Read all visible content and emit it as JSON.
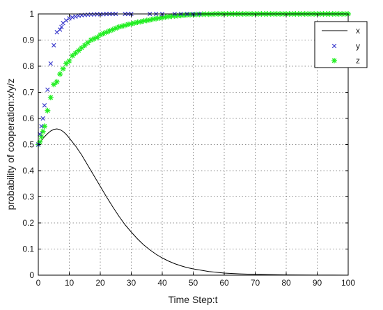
{
  "chart_data": {
    "type": "line",
    "xlabel": "Time Step:t",
    "ylabel": "probability of cooperation:x/y/z",
    "xlim": [
      0,
      100
    ],
    "ylim": [
      0,
      1
    ],
    "xticks": [
      0,
      10,
      20,
      30,
      40,
      50,
      60,
      70,
      80,
      90,
      100
    ],
    "yticks": [
      0,
      0.1,
      0.2,
      0.3,
      0.4,
      0.5,
      0.6,
      0.7,
      0.8,
      0.9,
      1
    ],
    "grid": true,
    "legend_position": "top-right",
    "series": [
      {
        "name": "x",
        "style": "line",
        "color": "#000000",
        "x": [
          0,
          1,
          2,
          3,
          4,
          5,
          6,
          7,
          8,
          9,
          10,
          12,
          14,
          16,
          18,
          20,
          22,
          24,
          26,
          28,
          30,
          32,
          34,
          36,
          38,
          40,
          42,
          44,
          46,
          48,
          50,
          55,
          60,
          65,
          70,
          75,
          80,
          85,
          90,
          95,
          100
        ],
        "y": [
          0.5,
          0.515,
          0.53,
          0.542,
          0.552,
          0.558,
          0.56,
          0.557,
          0.55,
          0.539,
          0.525,
          0.495,
          0.46,
          0.42,
          0.38,
          0.34,
          0.3,
          0.262,
          0.226,
          0.193,
          0.165,
          0.139,
          0.116,
          0.097,
          0.08,
          0.066,
          0.054,
          0.044,
          0.036,
          0.029,
          0.024,
          0.014,
          0.008,
          0.005,
          0.003,
          0.002,
          0.001,
          0.0007,
          0.0004,
          0.0002,
          0.0001
        ]
      },
      {
        "name": "y",
        "style": "marker-x",
        "color": "#3a3acc",
        "x": [
          0,
          0.5,
          1,
          1.5,
          2,
          3,
          4,
          5,
          6,
          7,
          7.5,
          8,
          9,
          10,
          11,
          12,
          13,
          14,
          15,
          16,
          17,
          18,
          19,
          20,
          21,
          22,
          23,
          24,
          25,
          28,
          29,
          30,
          36,
          38,
          40,
          44,
          46,
          48,
          50,
          52
        ],
        "y": [
          0.5,
          0.54,
          0.57,
          0.6,
          0.65,
          0.71,
          0.81,
          0.88,
          0.93,
          0.94,
          0.95,
          0.965,
          0.975,
          0.983,
          0.987,
          0.99,
          0.993,
          0.995,
          0.996,
          0.997,
          0.998,
          0.998,
          0.999,
          0.999,
          0.999,
          1.0,
          1.0,
          1.0,
          1.0,
          1.0,
          1.0,
          1.0,
          1.0,
          1.0,
          1.0,
          1.0,
          1.0,
          1.0,
          1.0,
          1.0
        ]
      },
      {
        "name": "z",
        "style": "marker-star",
        "color": "#22ee22",
        "x": [
          0,
          0.5,
          1,
          1.5,
          2,
          3,
          4,
          5,
          6,
          7,
          8,
          9,
          10,
          11,
          12,
          13,
          14,
          15,
          16,
          17,
          18,
          19,
          20,
          21,
          22,
          23,
          24,
          25,
          26,
          27,
          28,
          29,
          30,
          31,
          32,
          33,
          34,
          35,
          36,
          37,
          38,
          39,
          40,
          41,
          42,
          43,
          44,
          45,
          46,
          47,
          48,
          49,
          50,
          51,
          52,
          53,
          54,
          55,
          56,
          57,
          58,
          59,
          60,
          61,
          62,
          63,
          64,
          65,
          66,
          67,
          68,
          69,
          70,
          71,
          72,
          73,
          74,
          75,
          76,
          77,
          78,
          79,
          80,
          81,
          82,
          83,
          84,
          85,
          86,
          87,
          88,
          89,
          90,
          91,
          92,
          93,
          94,
          95,
          96,
          97,
          98,
          99,
          100
        ],
        "y": [
          0.5,
          0.51,
          0.53,
          0.55,
          0.57,
          0.63,
          0.68,
          0.73,
          0.74,
          0.77,
          0.79,
          0.81,
          0.82,
          0.84,
          0.85,
          0.86,
          0.87,
          0.88,
          0.89,
          0.9,
          0.905,
          0.91,
          0.92,
          0.925,
          0.93,
          0.935,
          0.94,
          0.945,
          0.95,
          0.953,
          0.956,
          0.96,
          0.962,
          0.965,
          0.968,
          0.97,
          0.973,
          0.975,
          0.977,
          0.98,
          0.982,
          0.984,
          0.986,
          0.988,
          0.99,
          0.991,
          0.992,
          0.993,
          0.994,
          0.995,
          0.996,
          0.997,
          0.997,
          0.998,
          0.998,
          0.999,
          0.999,
          0.999,
          0.999,
          1.0,
          1.0,
          1.0,
          1.0,
          1.0,
          1.0,
          1.0,
          1.0,
          1.0,
          1.0,
          1.0,
          1.0,
          1.0,
          1.0,
          1.0,
          1.0,
          1.0,
          1.0,
          1.0,
          1.0,
          1.0,
          1.0,
          1.0,
          1.0,
          1.0,
          1.0,
          1.0,
          1.0,
          1.0,
          1.0,
          1.0,
          1.0,
          1.0,
          1.0,
          1.0,
          1.0,
          1.0,
          1.0,
          1.0,
          1.0,
          1.0,
          1.0,
          1.0,
          1.0
        ]
      }
    ]
  }
}
